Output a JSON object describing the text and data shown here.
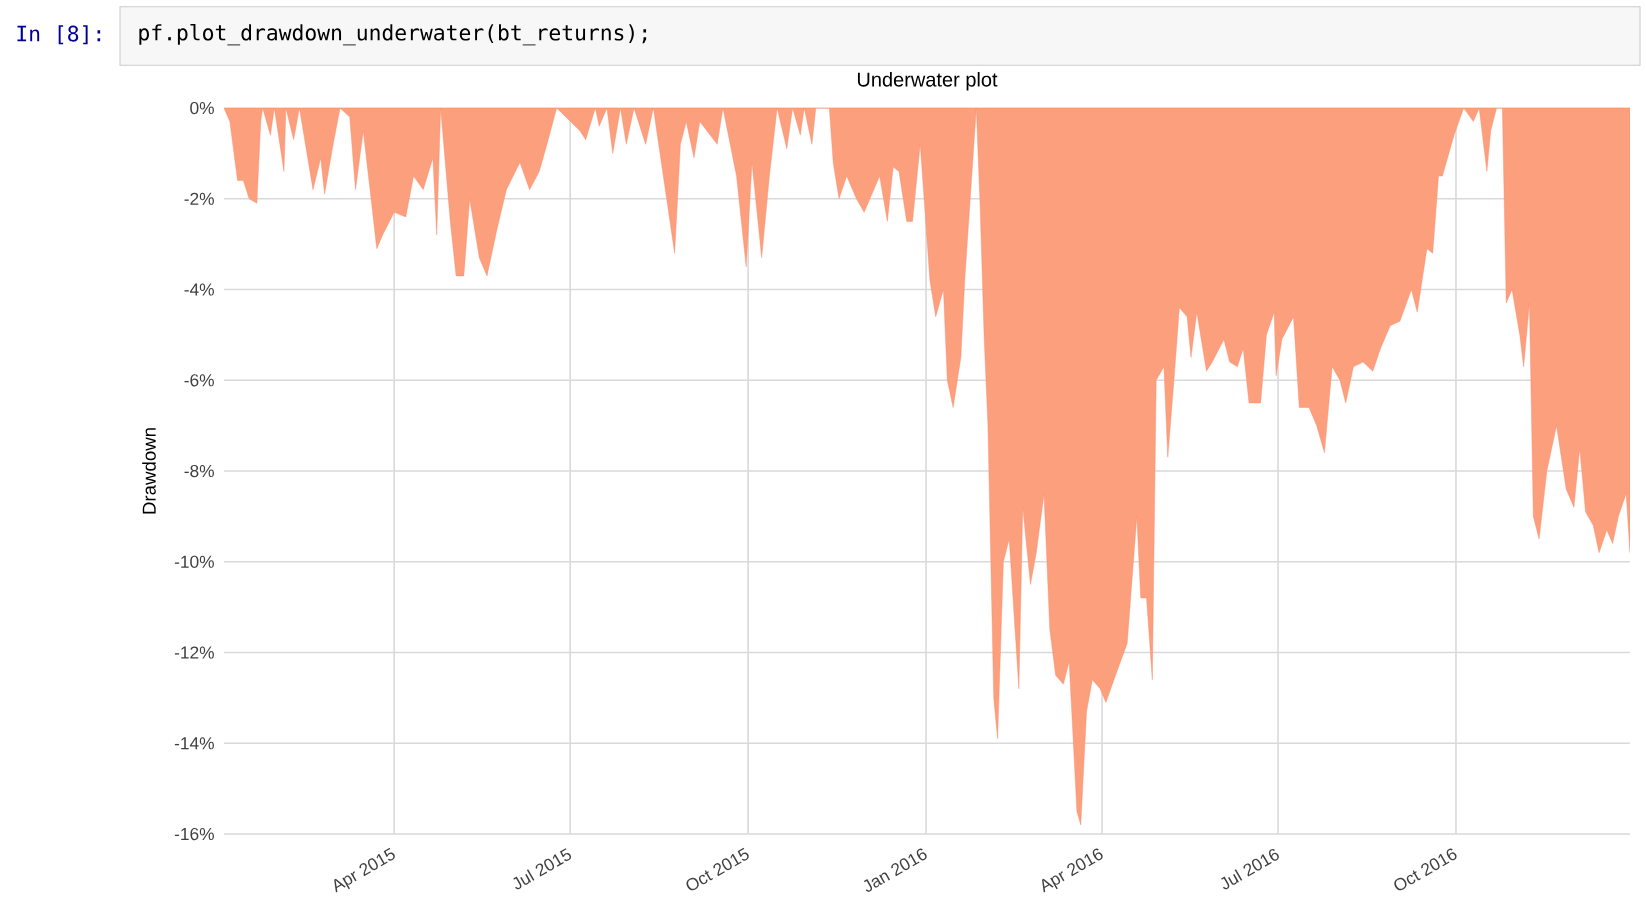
{
  "chart_data": {
    "type": "area",
    "title": "Underwater plot",
    "ylabel": "Drawdown",
    "annotations": [
      "In [8]:",
      "pf.plot_drawdown_underwater(bt_returns);"
    ],
    "x": [
      "2015-01-03",
      "2015-01-06",
      "2015-01-10",
      "2015-01-13",
      "2015-01-16",
      "2015-01-20",
      "2015-01-22",
      "2015-01-23",
      "2015-01-27",
      "2015-01-29",
      "2015-02-03",
      "2015-02-04",
      "2015-02-08",
      "2015-02-11",
      "2015-02-18",
      "2015-02-22",
      "2015-02-24",
      "2015-02-28",
      "2015-03-04",
      "2015-03-09",
      "2015-03-12",
      "2015-03-16",
      "2015-03-23",
      "2015-03-26",
      "2015-04-01",
      "2015-04-07",
      "2015-04-11",
      "2015-04-16",
      "2015-04-21",
      "2015-04-23",
      "2015-04-25",
      "2015-04-30",
      "2015-05-03",
      "2015-05-07",
      "2015-05-10",
      "2015-05-15",
      "2015-05-19",
      "2015-05-24",
      "2015-05-29",
      "2015-06-05",
      "2015-06-10",
      "2015-06-15",
      "2015-06-19",
      "2015-06-24",
      "2015-07-06",
      "2015-07-09",
      "2015-07-14",
      "2015-07-16",
      "2015-07-20",
      "2015-07-23",
      "2015-07-27",
      "2015-07-30",
      "2015-08-03",
      "2015-08-09",
      "2015-08-13",
      "2015-08-24",
      "2015-08-27",
      "2015-08-30",
      "2015-09-03",
      "2015-09-06",
      "2015-09-15",
      "2015-09-18",
      "2015-09-25",
      "2015-09-30",
      "2015-10-03",
      "2015-10-08",
      "2015-10-12",
      "2015-10-16",
      "2015-10-21",
      "2015-10-24",
      "2015-10-28",
      "2015-10-30",
      "2015-11-03",
      "2015-11-05",
      "2015-11-12",
      "2015-11-14",
      "2015-11-17",
      "2015-11-21",
      "2015-11-26",
      "2015-11-30",
      "2015-12-03",
      "2015-12-08",
      "2015-12-12",
      "2015-12-15",
      "2015-12-18",
      "2015-12-22",
      "2015-12-25",
      "2015-12-29",
      "2016-01-03",
      "2016-01-06",
      "2016-01-10",
      "2016-01-12",
      "2016-01-15",
      "2016-01-19",
      "2016-01-21",
      "2016-01-24",
      "2016-01-27",
      "2016-01-29",
      "2016-01-31",
      "2016-02-02",
      "2016-02-05",
      "2016-02-07",
      "2016-02-10",
      "2016-02-13",
      "2016-02-18",
      "2016-02-20",
      "2016-02-24",
      "2016-02-27",
      "2016-03-02",
      "2016-03-05",
      "2016-03-08",
      "2016-03-12",
      "2016-03-15",
      "2016-03-19",
      "2016-03-21",
      "2016-03-24",
      "2016-03-27",
      "2016-03-31",
      "2016-04-03",
      "2016-04-08",
      "2016-04-14",
      "2016-04-19",
      "2016-04-21",
      "2016-04-24",
      "2016-04-27",
      "2016-04-29",
      "2016-05-03",
      "2016-05-05",
      "2016-05-08",
      "2016-05-11",
      "2016-05-15",
      "2016-05-17",
      "2016-05-20",
      "2016-05-25",
      "2016-05-28",
      "2016-06-03",
      "2016-06-06",
      "2016-06-10",
      "2016-06-13",
      "2016-06-16",
      "2016-06-22",
      "2016-06-25",
      "2016-06-29",
      "2016-06-30",
      "2016-07-03",
      "2016-07-09",
      "2016-07-12",
      "2016-07-17",
      "2016-07-21",
      "2016-07-25",
      "2016-07-29",
      "2016-08-02",
      "2016-08-05",
      "2016-08-09",
      "2016-08-14",
      "2016-08-19",
      "2016-08-23",
      "2016-08-28",
      "2016-09-02",
      "2016-09-08",
      "2016-09-11",
      "2016-09-16",
      "2016-09-19",
      "2016-09-22",
      "2016-09-24",
      "2016-09-30",
      "2016-10-05",
      "2016-10-10",
      "2016-10-13",
      "2016-10-17",
      "2016-10-19",
      "2016-10-22",
      "2016-10-25",
      "2016-10-27",
      "2016-10-30",
      "2016-11-03",
      "2016-11-05",
      "2016-11-08",
      "2016-11-10",
      "2016-11-13",
      "2016-11-17",
      "2016-11-22",
      "2016-11-27",
      "2016-12-01",
      "2016-12-04",
      "2016-12-07",
      "2016-12-11",
      "2016-12-14",
      "2016-12-18",
      "2016-12-21",
      "2016-12-24",
      "2016-12-28",
      "2016-12-30"
    ],
    "values": [
      0,
      -0.3,
      -1.6,
      -1.6,
      -2.0,
      -2.1,
      -0.3,
      0,
      -0.6,
      0,
      -1.4,
      0,
      -0.7,
      0,
      -1.8,
      -1.1,
      -1.9,
      -0.9,
      0,
      -0.2,
      -1.8,
      -0.5,
      -3.1,
      -2.8,
      -2.3,
      -2.4,
      -1.5,
      -1.8,
      -1.1,
      -2.8,
      0,
      -2.5,
      -3.7,
      -3.7,
      -2.0,
      -3.3,
      -3.7,
      -2.7,
      -1.8,
      -1.2,
      -1.8,
      -1.4,
      -0.8,
      0,
      -0.5,
      -0.7,
      0,
      -0.4,
      0,
      -1.0,
      0,
      -0.8,
      0,
      -0.8,
      0,
      -3.2,
      -0.8,
      -0.3,
      -1.1,
      -0.3,
      -0.8,
      0,
      -1.5,
      -3.5,
      -1.2,
      -3.3,
      -1.5,
      0,
      -0.9,
      0,
      -0.6,
      0,
      -0.8,
      0,
      0,
      -1.2,
      -2.0,
      -1.5,
      -2.0,
      -2.3,
      -2.0,
      -1.5,
      -2.5,
      -1.3,
      -1.4,
      -2.5,
      -2.5,
      -0.8,
      -3.8,
      -4.6,
      -4.0,
      -6.0,
      -6.6,
      -5.5,
      -3.8,
      -1.9,
      0,
      -2.2,
      -5.0,
      -7.0,
      -13.0,
      -13.9,
      -10.0,
      -9.5,
      -12.8,
      -8.8,
      -10.5,
      -9.8,
      -8.5,
      -11.5,
      -12.5,
      -12.7,
      -12.2,
      -15.5,
      -15.8,
      -13.3,
      -12.6,
      -12.8,
      -13.1,
      -12.5,
      -11.8,
      -9.0,
      -10.8,
      -10.8,
      -12.6,
      -6.0,
      -5.7,
      -7.7,
      -6.1,
      -4.4,
      -4.6,
      -5.5,
      -4.5,
      -5.8,
      -5.6,
      -5.1,
      -5.6,
      -5.7,
      -5.3,
      -6.5,
      -6.5,
      -5.0,
      -4.5,
      -5.9,
      -5.1,
      -4.6,
      -6.6,
      -6.6,
      -7.0,
      -7.6,
      -5.7,
      -6.0,
      -6.5,
      -5.7,
      -5.6,
      -5.8,
      -5.3,
      -4.8,
      -4.7,
      -4.0,
      -4.5,
      -3.1,
      -3.2,
      -1.5,
      -1.5,
      -0.6,
      0,
      -0.3,
      0,
      -1.4,
      -0.5,
      0,
      0,
      -4.3,
      -4.0,
      -5.0,
      -5.7,
      -4.3,
      -9.0,
      -9.5,
      -8.0,
      -7.0,
      -8.4,
      -8.8,
      -7.5,
      -8.9,
      -9.2,
      -9.8,
      -9.3,
      -9.6,
      -9.0,
      -8.5,
      -9.8
    ],
    "color": "#fc9f7c",
    "xlim": [
      "2015-01-03",
      "2016-12-30"
    ],
    "xticks": [
      {
        "value": "2015-04-01",
        "label": "Apr 2015"
      },
      {
        "value": "2015-07-01",
        "label": "Jul 2015"
      },
      {
        "value": "2015-10-01",
        "label": "Oct 2015"
      },
      {
        "value": "2016-01-01",
        "label": "Jan 2016"
      },
      {
        "value": "2016-04-01",
        "label": "Apr 2016"
      },
      {
        "value": "2016-07-01",
        "label": "Jul 2016"
      },
      {
        "value": "2016-10-01",
        "label": "Oct 2016"
      }
    ],
    "ylim": [
      -16,
      0
    ],
    "yticks": [
      {
        "value": -16,
        "label": "-16%"
      },
      {
        "value": -14,
        "label": "-14%"
      },
      {
        "value": -12,
        "label": "-12%"
      },
      {
        "value": -10,
        "label": "-10%"
      },
      {
        "value": -8,
        "label": "-8%"
      },
      {
        "value": -6,
        "label": "-6%"
      },
      {
        "value": -4,
        "label": "-4%"
      },
      {
        "value": -2,
        "label": "-2%"
      },
      {
        "value": 0,
        "label": "0%"
      }
    ],
    "grid": true
  }
}
